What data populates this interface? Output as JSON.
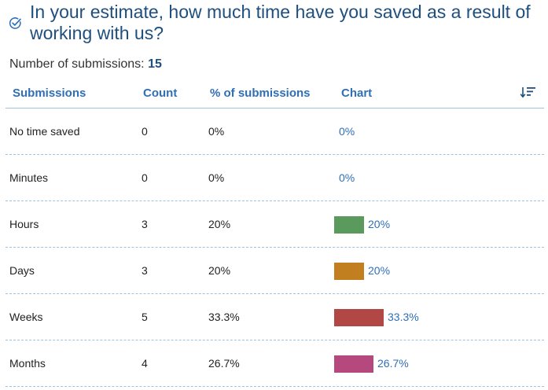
{
  "question": {
    "title": "In your estimate, how much time have you saved as a result of working with us?",
    "icon": "check-circle-icon"
  },
  "summary": {
    "label": "Number of submissions:",
    "count": "15"
  },
  "table": {
    "columns": [
      "Submissions",
      "Count",
      "% of submissions",
      "Chart"
    ],
    "sort_icon": "sort-descending-icon",
    "rows": [
      {
        "label": "No time saved",
        "count": "0",
        "percent": "0%",
        "bar_label": "0%",
        "value": 0,
        "color": "#5b9a5d"
      },
      {
        "label": "Minutes",
        "count": "0",
        "percent": "0%",
        "bar_label": "0%",
        "value": 0,
        "color": "#5b9a5d"
      },
      {
        "label": "Hours",
        "count": "3",
        "percent": "20%",
        "bar_label": "20%",
        "value": 20,
        "color": "#5b9a5d"
      },
      {
        "label": "Days",
        "count": "3",
        "percent": "20%",
        "bar_label": "20%",
        "value": 20,
        "color": "#c27f20"
      },
      {
        "label": "Weeks",
        "count": "5",
        "percent": "33.3%",
        "bar_label": "33.3%",
        "value": 33.3,
        "color": "#b24846"
      },
      {
        "label": "Months",
        "count": "4",
        "percent": "26.7%",
        "bar_label": "26.7%",
        "value": 26.7,
        "color": "#b5487d"
      }
    ]
  },
  "colors": {
    "title": "#1e4f7d",
    "header_text": "#2e6fb7",
    "divider": "#9fc3de"
  }
}
